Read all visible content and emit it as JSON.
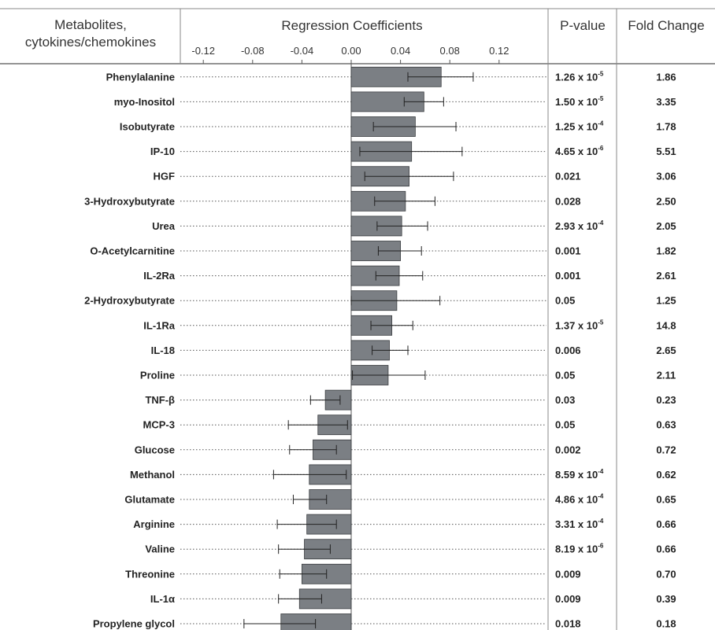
{
  "headers": {
    "labels_line1": "Metabolites,",
    "labels_line2": "cytokines/chemokines",
    "coef": "Regression Coefficients",
    "pvalue": "P-value",
    "fold": "Fold Change"
  },
  "chart_data": {
    "type": "bar",
    "orientation": "horizontal",
    "title": "",
    "xlabel": "Regression Coefficients",
    "xlim": [
      -0.155,
      0.155
    ],
    "ticks": [
      -0.12,
      -0.08,
      -0.04,
      0.0,
      0.04,
      0.08,
      0.12
    ],
    "tick_labels": [
      "-0.12",
      "-0.08",
      "-0.04",
      "0.00",
      "0.04",
      "0.08",
      "0.12"
    ],
    "colors": {
      "bar": "#7b7f84",
      "bar_edge": "#3a3d40",
      "line": "#222222"
    },
    "categories": [
      "Phenylalanine",
      "myo-Inositol",
      "Isobutyrate",
      "IP-10",
      "HGF",
      "3-Hydroxybutyrate",
      "Urea",
      "O-Acetylcarnitine",
      "IL-2Ra",
      "2-Hydroxybutyrate",
      "IL-1Ra",
      "IL-18",
      "Proline",
      "TNF-β",
      "MCP-3",
      "Glucose",
      "Methanol",
      "Glutamate",
      "Arginine",
      "Valine",
      "Threonine",
      "IL-1α",
      "Propylene glycol"
    ],
    "values": [
      0.073,
      0.059,
      0.052,
      0.049,
      0.047,
      0.044,
      0.041,
      0.04,
      0.039,
      0.037,
      0.033,
      0.031,
      0.03,
      -0.021,
      -0.027,
      -0.031,
      -0.034,
      -0.034,
      -0.036,
      -0.038,
      -0.04,
      -0.042,
      -0.057
    ],
    "ci_low": [
      0.046,
      0.043,
      0.018,
      0.007,
      0.011,
      0.019,
      0.021,
      0.022,
      0.02,
      0.0,
      0.016,
      0.017,
      0.001,
      -0.033,
      -0.051,
      -0.05,
      -0.063,
      -0.047,
      -0.06,
      -0.059,
      -0.058,
      -0.059,
      -0.087
    ],
    "ci_high": [
      0.099,
      0.075,
      0.085,
      0.09,
      0.083,
      0.068,
      0.062,
      0.057,
      0.058,
      0.072,
      0.05,
      0.046,
      0.06,
      -0.009,
      -0.003,
      -0.012,
      -0.004,
      -0.02,
      -0.012,
      -0.017,
      -0.02,
      -0.024,
      -0.029
    ],
    "pvalues": [
      {
        "mantissa": "1.26 x 10",
        "exp": "-5"
      },
      {
        "mantissa": "1.50 x 10",
        "exp": "-5"
      },
      {
        "mantissa": "1.25 x 10",
        "exp": "-4"
      },
      {
        "mantissa": "4.65 x 10",
        "exp": "-6"
      },
      {
        "mantissa": "0.021",
        "exp": ""
      },
      {
        "mantissa": "0.028",
        "exp": ""
      },
      {
        "mantissa": "2.93 x 10",
        "exp": "-4"
      },
      {
        "mantissa": "0.001",
        "exp": ""
      },
      {
        "mantissa": "0.001",
        "exp": ""
      },
      {
        "mantissa": "0.05",
        "exp": ""
      },
      {
        "mantissa": "1.37 x 10",
        "exp": "-5"
      },
      {
        "mantissa": "0.006",
        "exp": ""
      },
      {
        "mantissa": "0.05",
        "exp": ""
      },
      {
        "mantissa": "0.03",
        "exp": ""
      },
      {
        "mantissa": "0.05",
        "exp": ""
      },
      {
        "mantissa": "0.002",
        "exp": ""
      },
      {
        "mantissa": "8.59 x 10",
        "exp": "-4"
      },
      {
        "mantissa": "4.86 x 10",
        "exp": "-4"
      },
      {
        "mantissa": "3.31 x 10",
        "exp": "-4"
      },
      {
        "mantissa": "8.19 x 10",
        "exp": "-6"
      },
      {
        "mantissa": "0.009",
        "exp": ""
      },
      {
        "mantissa": "0.009",
        "exp": ""
      },
      {
        "mantissa": "0.018",
        "exp": ""
      }
    ],
    "fold_change": [
      "1.86",
      "3.35",
      "1.78",
      "5.51",
      "3.06",
      "2.50",
      "2.05",
      "1.82",
      "2.61",
      "1.25",
      "14.8",
      "2.65",
      "2.11",
      "0.23",
      "0.63",
      "0.72",
      "0.62",
      "0.65",
      "0.66",
      "0.66",
      "0.70",
      "0.39",
      "0.18"
    ],
    "grid": false
  }
}
